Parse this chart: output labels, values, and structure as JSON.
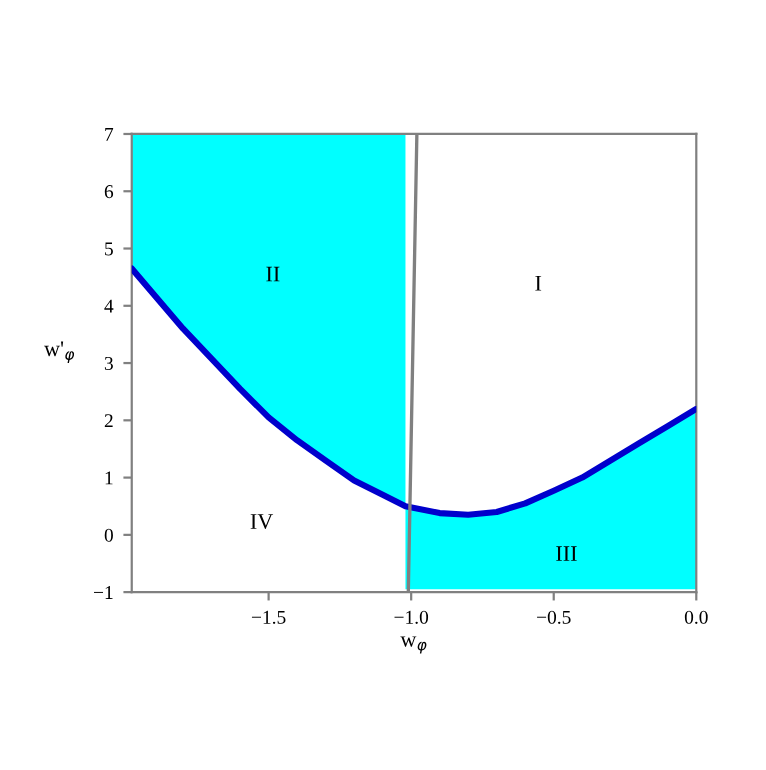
{
  "chart_data": {
    "type": "line",
    "xlabel": "w$_{φ}$",
    "ylabel": "w'$_{φ}$",
    "xlim": [
      -1.98,
      0.0
    ],
    "ylim": [
      -1,
      7
    ],
    "xticks": [
      {
        "value": -1.5,
        "label": "−1.5"
      },
      {
        "value": -1.0,
        "label": "−1.0"
      },
      {
        "value": -0.5,
        "label": "−0.5"
      },
      {
        "value": 0.0,
        "label": "0.0"
      }
    ],
    "yticks": [
      {
        "value": -1,
        "label": "−1"
      },
      0,
      1,
      2,
      3,
      4,
      5,
      6,
      7
    ],
    "grid": false,
    "series": [
      {
        "color": "#0000cc",
        "x": [
          -1.98,
          -1.8,
          -1.6,
          -1.5,
          -1.4,
          -1.3,
          -1.2,
          -1.1,
          -1.02,
          -1.02,
          -0.9,
          -0.8,
          -0.7,
          -0.6,
          -0.5,
          -0.4,
          -0.3,
          -0.2,
          -0.1,
          0.0
        ],
        "values": [
          4.65,
          3.6,
          2.55,
          2.05,
          1.65,
          1.3,
          0.95,
          0.7,
          0.5,
          0.5,
          0.38,
          0.35,
          0.4,
          0.55,
          0.77,
          1.0,
          1.3,
          1.6,
          1.9,
          2.2
        ],
        "lower": [
          4.65,
          3.6,
          2.55,
          2.05,
          1.65,
          1.3,
          0.95,
          0.7,
          0.5,
          -0.95,
          -0.95,
          -0.95,
          -0.95,
          -0.95,
          -0.95,
          -0.95,
          -0.95,
          -0.95,
          -0.95,
          -0.95
        ],
        "upper": [
          7,
          7,
          7,
          7,
          7,
          7,
          7,
          7,
          7,
          0.5,
          0.38,
          0.35,
          0.4,
          0.55,
          0.77,
          1.0,
          1.3,
          1.6,
          1.9,
          2.2
        ]
      },
      {
        "color": "#808080",
        "x": [
          -1.01,
          -0.98
        ],
        "values": [
          -1,
          7
        ]
      }
    ],
    "annotations": [
      "I",
      "II",
      "III",
      "IV"
    ]
  }
}
